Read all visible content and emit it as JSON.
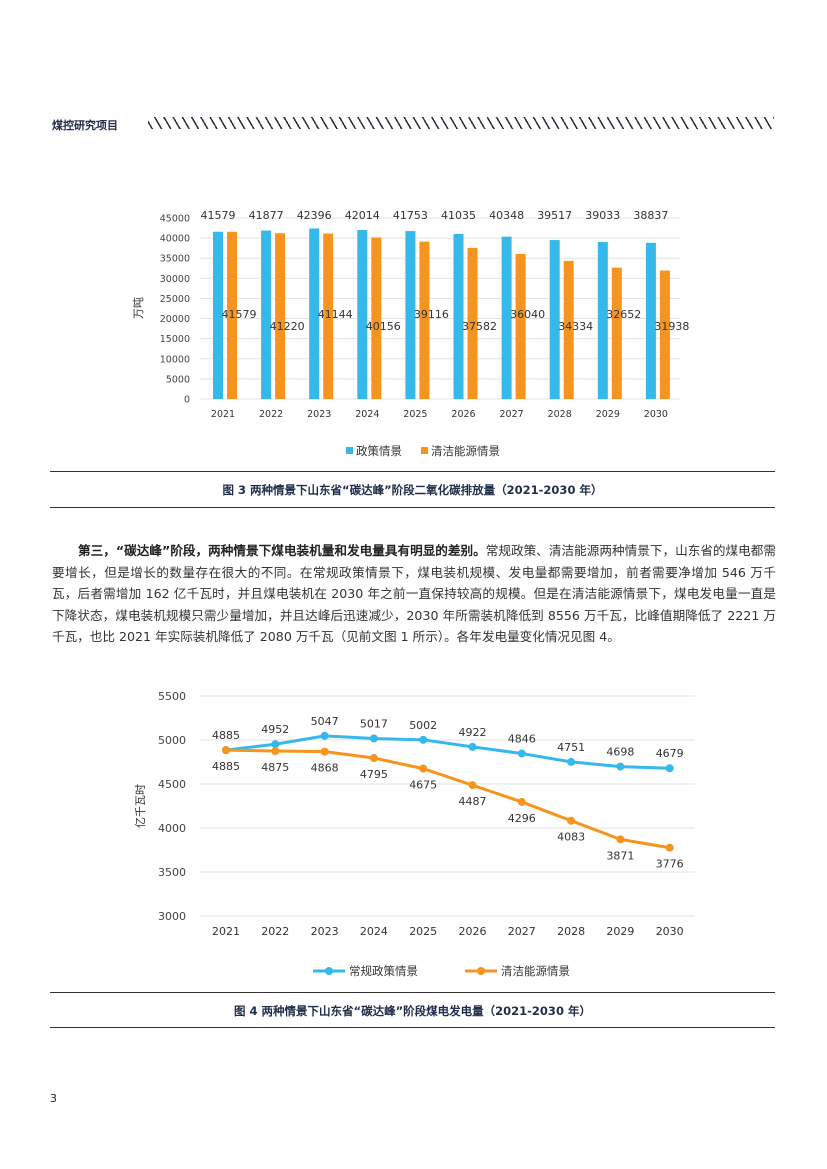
{
  "header": {
    "section": "煤控研究项目"
  },
  "page_number": "3",
  "paragraph": {
    "lead": "第三，“碳达峰”阶段，两种情景下煤电装机量和发电量具有明显的差别。",
    "body": "常规政策、清洁能源两种情景下，山东省的煤电都需要增长，但是增长的数量存在很大的不同。在常规政策情景下，煤电装机规模、发电量都需要增加，前者需要净增加 546 万千瓦，后者需增加 162 亿千瓦时，并且煤电装机在 2030 年之前一直保持较高的规模。但是在清洁能源情景下，煤电发电量一直是下降状态，煤电装机规模只需少量增加，并且达峰后迅速减少，2030 年所需装机降低到 8556 万千瓦，比峰值期降低了 2221 万千瓦，也比 2021 年实际装机降低了 2080 万千瓦（见前文图 1 所示）。各年发电量变化情况见图 4。"
  },
  "captions": {
    "fig3": "图 3 两种情景下山东省“碳达峰”阶段二氧化碳排放量（2021-2030 年）",
    "fig4": "图 4 两种情景下山东省“碳达峰”阶段煤电发电量（2021-2030 年）"
  },
  "colors": {
    "blue": "#35b8ec",
    "orange": "#f7941d"
  },
  "chart_data": [
    {
      "type": "bar",
      "title": "",
      "ylabel": "万吨",
      "xlabel": "",
      "ylim": [
        0,
        45000
      ],
      "yticks": [
        0,
        5000,
        10000,
        15000,
        20000,
        25000,
        30000,
        35000,
        40000,
        45000
      ],
      "categories": [
        "2021",
        "2022",
        "2023",
        "2024",
        "2025",
        "2026",
        "2027",
        "2028",
        "2029",
        "2030"
      ],
      "series": [
        {
          "name": "政策情景",
          "values": [
            41579,
            41877,
            42396,
            42014,
            41753,
            41035,
            40348,
            39517,
            39033,
            38837
          ]
        },
        {
          "name": "清洁能源情景",
          "values": [
            41579,
            41220,
            41144,
            40156,
            39116,
            37582,
            36040,
            34334,
            32652,
            31938
          ]
        }
      ],
      "legend": "bottom",
      "grid": true
    },
    {
      "type": "line",
      "title": "",
      "ylabel": "亿千瓦时",
      "xlabel": "",
      "ylim": [
        3000,
        5500
      ],
      "yticks": [
        3000,
        3500,
        4000,
        4500,
        5000,
        5500
      ],
      "categories": [
        "2021",
        "2022",
        "2023",
        "2024",
        "2025",
        "2026",
        "2027",
        "2028",
        "2029",
        "2030"
      ],
      "series": [
        {
          "name": "常规政策情景",
          "values": [
            4885,
            4952,
            5047,
            5017,
            5002,
            4922,
            4846,
            4751,
            4698,
            4679
          ]
        },
        {
          "name": "清洁能源情景",
          "values": [
            4885,
            4875,
            4868,
            4795,
            4675,
            4487,
            4296,
            4083,
            3871,
            3776
          ]
        }
      ],
      "legend": "bottom",
      "grid": true
    }
  ]
}
